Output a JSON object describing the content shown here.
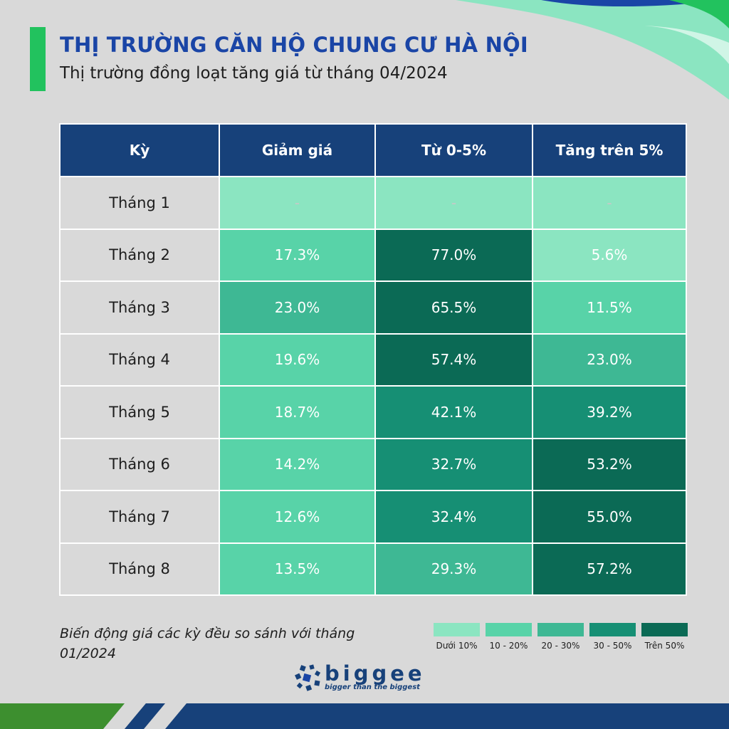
{
  "header": {
    "title": "THỊ TRƯỜNG CĂN HỘ CHUNG CƯ HÀ NỘI",
    "subtitle": "Thị trường đồng loạt tăng giá từ tháng 04/2024"
  },
  "chart_data": {
    "type": "table",
    "columns": [
      "Kỳ",
      "Giảm giá",
      "Từ 0-5%",
      "Tăng trên 5%"
    ],
    "rows": [
      {
        "period": "Tháng 1",
        "values": [
          null,
          null,
          null
        ],
        "labels": [
          "-",
          "-",
          "-"
        ]
      },
      {
        "period": "Tháng 2",
        "values": [
          17.3,
          77.0,
          5.6
        ],
        "labels": [
          "17.3%",
          "77.0%",
          "5.6%"
        ]
      },
      {
        "period": "Tháng 3",
        "values": [
          23.0,
          65.5,
          11.5
        ],
        "labels": [
          "23.0%",
          "65.5%",
          "11.5%"
        ]
      },
      {
        "period": "Tháng 4",
        "values": [
          19.6,
          57.4,
          23.0
        ],
        "labels": [
          "19.6%",
          "57.4%",
          "23.0%"
        ]
      },
      {
        "period": "Tháng 5",
        "values": [
          18.7,
          42.1,
          39.2
        ],
        "labels": [
          "18.7%",
          "42.1%",
          "39.2%"
        ]
      },
      {
        "period": "Tháng 6",
        "values": [
          14.2,
          32.7,
          53.2
        ],
        "labels": [
          "14.2%",
          "32.7%",
          "53.2%"
        ]
      },
      {
        "period": "Tháng 7",
        "values": [
          12.6,
          32.4,
          55.0
        ],
        "labels": [
          "12.6%",
          "32.4%",
          "55.0%"
        ]
      },
      {
        "period": "Tháng 8",
        "values": [
          13.5,
          29.3,
          57.2
        ],
        "labels": [
          "13.5%",
          "29.3%",
          "57.2%"
        ]
      }
    ],
    "legend": [
      {
        "label": "Dưới 10%",
        "min": 0,
        "max": 10,
        "color": "#8be5c1"
      },
      {
        "label": "10 - 20%",
        "min": 10,
        "max": 20,
        "color": "#58d3a8"
      },
      {
        "label": "20 - 30%",
        "min": 20,
        "max": 30,
        "color": "#3eb894"
      },
      {
        "label": "30 - 50%",
        "min": 30,
        "max": 50,
        "color": "#168f74"
      },
      {
        "label": "Trên 50%",
        "min": 50,
        "max": 1000,
        "color": "#0b6a55"
      }
    ],
    "empty_color": "#8be5c1"
  },
  "footnote": "Biến động giá các kỳ đều so sánh với tháng 01/2024",
  "brand": {
    "name": "biggee",
    "tagline": "bigger than the biggest",
    "logo_icon": "biggee-logo-icon"
  },
  "colors": {
    "accent_green": "#22c25e",
    "title_blue": "#1a45a6",
    "header_navy": "#17417a"
  }
}
